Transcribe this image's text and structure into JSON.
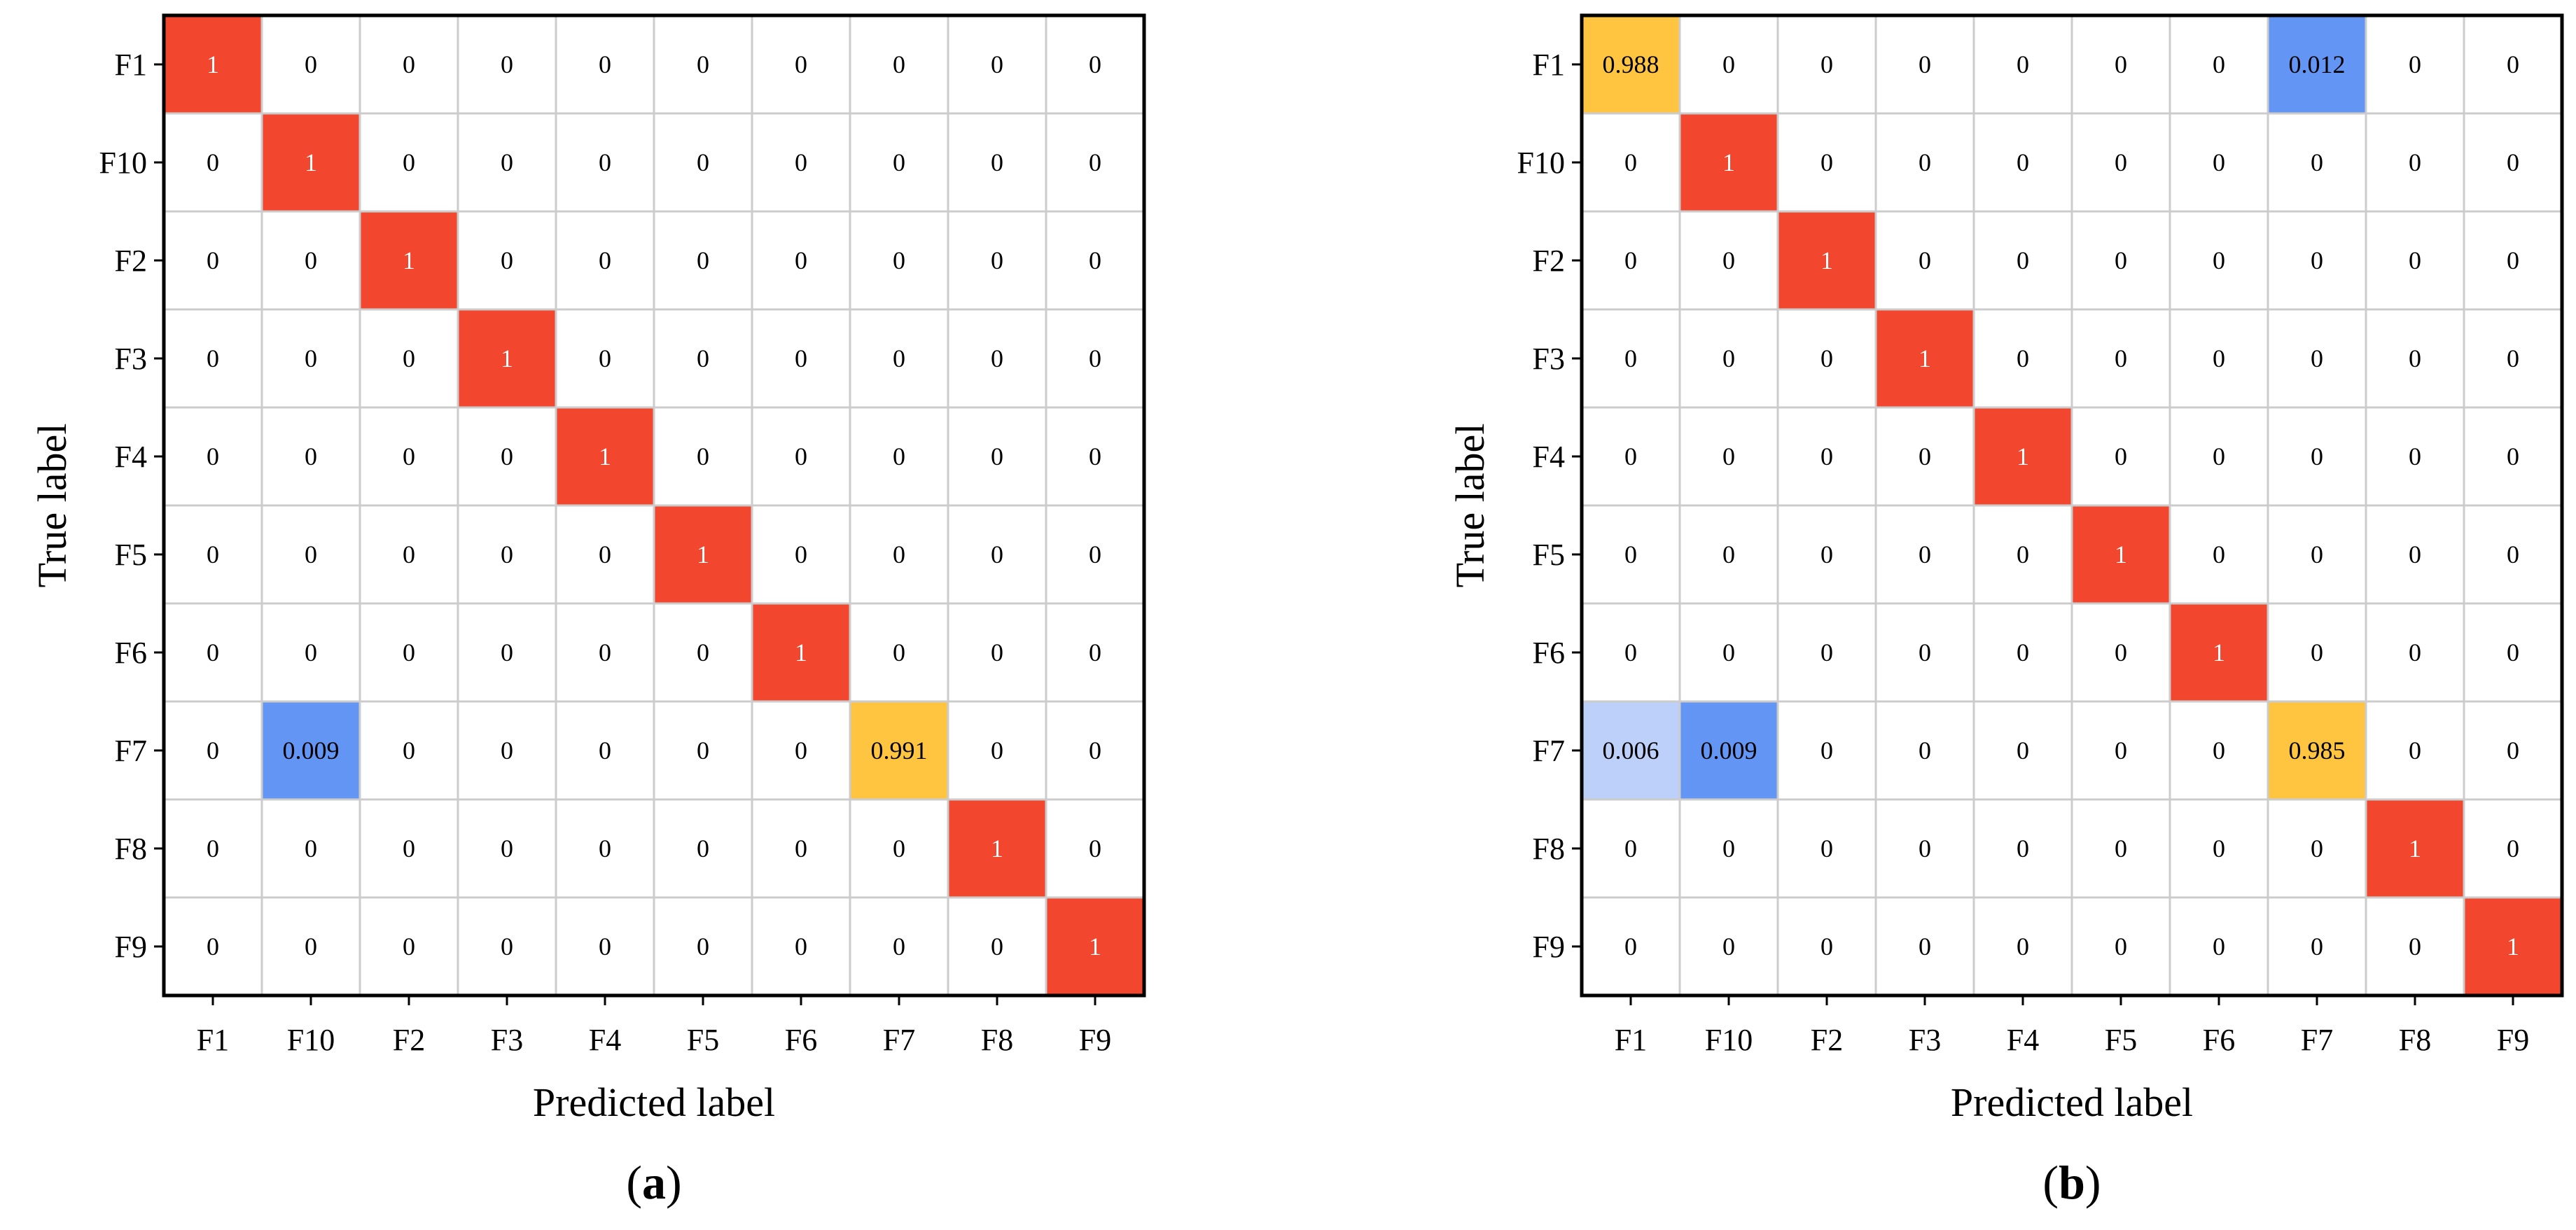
{
  "colors": {
    "diag": "#F2462E",
    "high": "#FFC540",
    "low_mid": "#6395F4",
    "low_light": "#BDD0F9",
    "grid": "#CCCCCC",
    "frame": "#000000",
    "text": "#000000",
    "text_on_diag": "#FFFFFF"
  },
  "chart_data": [
    {
      "type": "heatmap",
      "panel_label": "a",
      "xlabel": "Predicted label",
      "ylabel": "True label",
      "x_categories": [
        "F1",
        "F10",
        "F2",
        "F3",
        "F4",
        "F5",
        "F6",
        "F7",
        "F8",
        "F9"
      ],
      "y_categories": [
        "F1",
        "F10",
        "F2",
        "F3",
        "F4",
        "F5",
        "F6",
        "F7",
        "F8",
        "F9"
      ],
      "cells": [
        [
          "1",
          "0",
          "0",
          "0",
          "0",
          "0",
          "0",
          "0",
          "0",
          "0"
        ],
        [
          "0",
          "1",
          "0",
          "0",
          "0",
          "0",
          "0",
          "0",
          "0",
          "0"
        ],
        [
          "0",
          "0",
          "1",
          "0",
          "0",
          "0",
          "0",
          "0",
          "0",
          "0"
        ],
        [
          "0",
          "0",
          "0",
          "1",
          "0",
          "0",
          "0",
          "0",
          "0",
          "0"
        ],
        [
          "0",
          "0",
          "0",
          "0",
          "1",
          "0",
          "0",
          "0",
          "0",
          "0"
        ],
        [
          "0",
          "0",
          "0",
          "0",
          "0",
          "1",
          "0",
          "0",
          "0",
          "0"
        ],
        [
          "0",
          "0",
          "0",
          "0",
          "0",
          "0",
          "1",
          "0",
          "0",
          "0"
        ],
        [
          "0",
          "0.009",
          "0",
          "0",
          "0",
          "0",
          "0",
          "0.991",
          "0",
          "0"
        ],
        [
          "0",
          "0",
          "0",
          "0",
          "0",
          "0",
          "0",
          "0",
          "1",
          "0"
        ],
        [
          "0",
          "0",
          "0",
          "0",
          "0",
          "0",
          "0",
          "0",
          "0",
          "1"
        ]
      ]
    },
    {
      "type": "heatmap",
      "panel_label": "b",
      "xlabel": "Predicted label",
      "ylabel": "True label",
      "x_categories": [
        "F1",
        "F10",
        "F2",
        "F3",
        "F4",
        "F5",
        "F6",
        "F7",
        "F8",
        "F9"
      ],
      "y_categories": [
        "F1",
        "F10",
        "F2",
        "F3",
        "F4",
        "F5",
        "F6",
        "F7",
        "F8",
        "F9"
      ],
      "cells": [
        [
          "0.988",
          "0",
          "0",
          "0",
          "0",
          "0",
          "0",
          "0.012",
          "0",
          "0"
        ],
        [
          "0",
          "1",
          "0",
          "0",
          "0",
          "0",
          "0",
          "0",
          "0",
          "0"
        ],
        [
          "0",
          "0",
          "1",
          "0",
          "0",
          "0",
          "0",
          "0",
          "0",
          "0"
        ],
        [
          "0",
          "0",
          "0",
          "1",
          "0",
          "0",
          "0",
          "0",
          "0",
          "0"
        ],
        [
          "0",
          "0",
          "0",
          "0",
          "1",
          "0",
          "0",
          "0",
          "0",
          "0"
        ],
        [
          "0",
          "0",
          "0",
          "0",
          "0",
          "1",
          "0",
          "0",
          "0",
          "0"
        ],
        [
          "0",
          "0",
          "0",
          "0",
          "0",
          "0",
          "1",
          "0",
          "0",
          "0"
        ],
        [
          "0.006",
          "0.009",
          "0",
          "0",
          "0",
          "0",
          "0",
          "0.985",
          "0",
          "0"
        ],
        [
          "0",
          "0",
          "0",
          "0",
          "0",
          "0",
          "0",
          "0",
          "1",
          "0"
        ],
        [
          "0",
          "0",
          "0",
          "0",
          "0",
          "0",
          "0",
          "0",
          "0",
          "1"
        ]
      ]
    }
  ]
}
